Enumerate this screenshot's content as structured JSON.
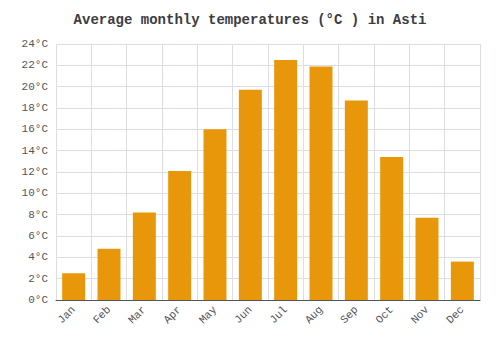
{
  "chart_data": {
    "type": "bar",
    "title": "Average monthly temperatures (°C ) in Asti",
    "categories": [
      "Jan",
      "Feb",
      "Mar",
      "Apr",
      "May",
      "Jun",
      "Jul",
      "Aug",
      "Sep",
      "Oct",
      "Nov",
      "Dec"
    ],
    "values": [
      2.5,
      4.8,
      8.2,
      12.1,
      16.0,
      19.7,
      22.5,
      21.9,
      18.7,
      13.4,
      7.7,
      3.6
    ],
    "color": "#E8960A",
    "ylim": [
      0,
      24
    ],
    "yticks": [
      {
        "value": 0,
        "label": "0°C"
      },
      {
        "value": 2,
        "label": "2°C"
      },
      {
        "value": 4,
        "label": "4°C"
      },
      {
        "value": 6,
        "label": "6°C"
      },
      {
        "value": 8,
        "label": "8°C"
      },
      {
        "value": 10,
        "label": "10°C"
      },
      {
        "value": 12,
        "label": "12°C"
      },
      {
        "value": 14,
        "label": "14°C"
      },
      {
        "value": 16,
        "label": "16°C"
      },
      {
        "value": 18,
        "label": "18°C"
      },
      {
        "value": 20,
        "label": "20°C"
      },
      {
        "value": 22,
        "label": "22°C"
      },
      {
        "value": 24,
        "label": "24°C"
      }
    ],
    "grid": true
  }
}
